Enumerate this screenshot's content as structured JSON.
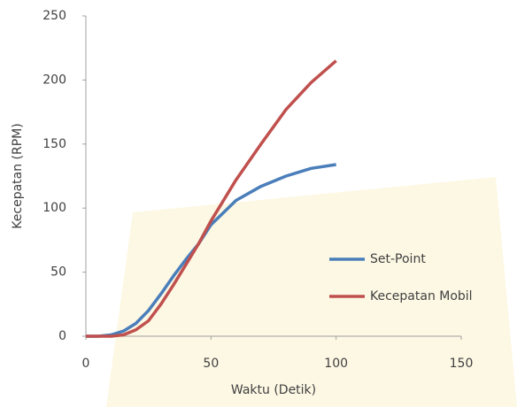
{
  "chart_data": {
    "type": "line",
    "xlabel": "Waktu (Detik)",
    "ylabel": "Kecepatan (RPM)",
    "x": [
      0,
      5,
      10,
      15,
      20,
      25,
      30,
      35,
      40,
      45,
      50,
      60,
      70,
      80,
      90,
      100
    ],
    "series": [
      {
        "name": "Set-Point",
        "color": "#4a7eba",
        "values": [
          0,
          0,
          1,
          4,
          10,
          20,
          33,
          47,
          60,
          72,
          87,
          106,
          117,
          125,
          131,
          134
        ]
      },
      {
        "name": "Kecepatan Mobil",
        "color": "#c0504d",
        "values": [
          0,
          0,
          0,
          1,
          5,
          12,
          25,
          40,
          56,
          72,
          90,
          122,
          150,
          177,
          198,
          215
        ]
      }
    ],
    "xlim": [
      0,
      150
    ],
    "xticks": [
      0,
      50,
      100,
      150
    ],
    "ylim": [
      0,
      250
    ],
    "yticks": [
      0,
      50,
      100,
      150,
      200,
      250
    ],
    "grid": false,
    "legend": "right"
  }
}
